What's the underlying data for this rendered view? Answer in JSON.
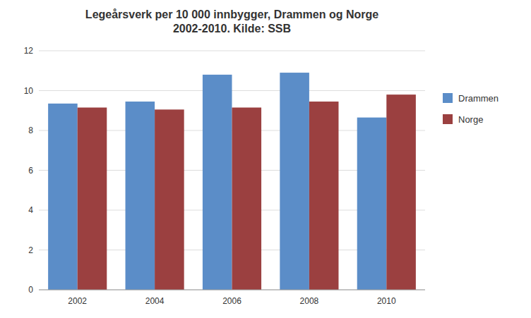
{
  "chart_data": {
    "type": "bar",
    "title": "Legeårsverk per 10 000 innbygger, Drammen og Norge\n2002-2010. Kilde: SSB",
    "categories": [
      "2002",
      "2004",
      "2006",
      "2008",
      "2010"
    ],
    "series": [
      {
        "name": "Drammen",
        "color": "#5B8DC8",
        "values": [
          9.35,
          9.45,
          10.8,
          10.9,
          8.65
        ]
      },
      {
        "name": "Norge",
        "color": "#9B4040",
        "values": [
          9.15,
          9.05,
          9.15,
          9.45,
          9.8
        ]
      }
    ],
    "ylim": [
      0,
      12
    ],
    "yticks": [
      0,
      2,
      4,
      6,
      8,
      10,
      12
    ],
    "grid": true,
    "legend": "right"
  }
}
